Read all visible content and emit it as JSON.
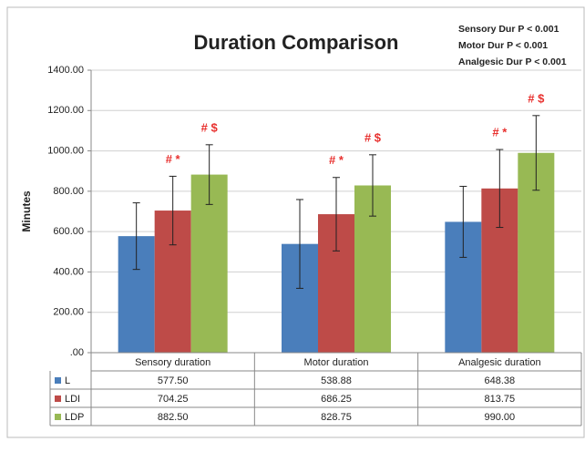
{
  "chart_data": {
    "type": "bar",
    "title": "Duration Comparison",
    "notes": [
      "Sensory Dur P < 0.001",
      "Motor Dur P < 0.001",
      "Analgesic Dur P < 0.001"
    ],
    "y_label": "Minutes",
    "categories": [
      "Sensory duration",
      "Motor duration",
      "Analgesic duration"
    ],
    "series": [
      {
        "name": "L",
        "color": "#4a7ebb",
        "values": [
          577.5,
          538.88,
          648.38
        ],
        "value_labels": [
          "577.50",
          "538.88",
          "648.38"
        ],
        "errors": [
          165,
          220,
          176
        ]
      },
      {
        "name": "LDI",
        "color": "#be4b48",
        "values": [
          704.25,
          686.25,
          813.75
        ],
        "value_labels": [
          "704.25",
          "686.25",
          "813.75"
        ],
        "errors": [
          170,
          182,
          193
        ]
      },
      {
        "name": "LDP",
        "color": "#98b954",
        "values": [
          882.5,
          828.75,
          990
        ],
        "value_labels": [
          "882.50",
          "828.75",
          "990.00"
        ],
        "errors": [
          148,
          152,
          185
        ]
      }
    ],
    "annotations": [
      {
        "text": "# *",
        "series": 1,
        "category": 0
      },
      {
        "text": "# $",
        "series": 2,
        "category": 0
      },
      {
        "text": "# *",
        "series": 1,
        "category": 1
      },
      {
        "text": "# $",
        "series": 2,
        "category": 1
      },
      {
        "text": "# *",
        "series": 1,
        "category": 2
      },
      {
        "text": "# $",
        "series": 2,
        "category": 2
      }
    ],
    "annotation_color": "#e8312f",
    "ylim": [
      0,
      1400
    ],
    "yticks": [
      {
        "value": 0,
        "label": ".00"
      },
      {
        "value": 200,
        "label": "200.00"
      },
      {
        "value": 400,
        "label": "400.00"
      },
      {
        "value": 600,
        "label": "600.00"
      },
      {
        "value": 800,
        "label": "800.00"
      },
      {
        "value": 1000,
        "label": "1000.00"
      },
      {
        "value": 1200,
        "label": "1200.00"
      },
      {
        "value": 1400,
        "label": "1400.00"
      }
    ],
    "grid": true
  }
}
